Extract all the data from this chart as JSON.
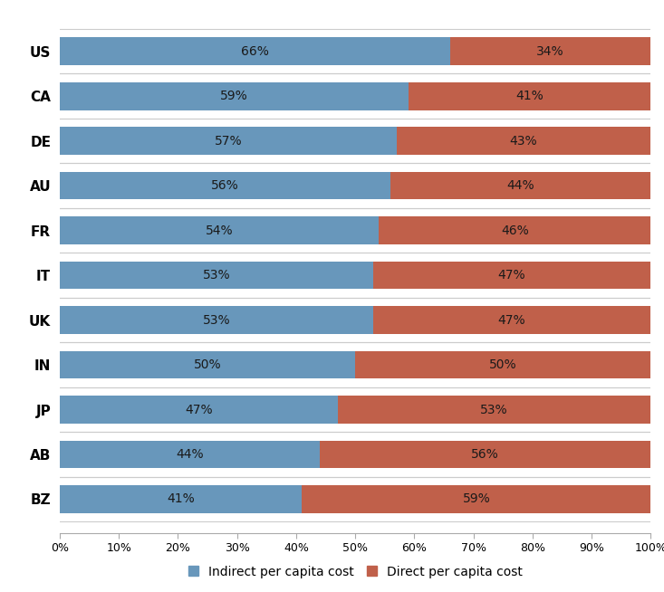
{
  "countries": [
    "US",
    "CA",
    "DE",
    "AU",
    "FR",
    "IT",
    "UK",
    "IN",
    "JP",
    "AB",
    "BZ"
  ],
  "indirect_pct": [
    66,
    59,
    57,
    56,
    54,
    53,
    53,
    50,
    47,
    44,
    41
  ],
  "direct_pct": [
    34,
    41,
    43,
    44,
    46,
    47,
    47,
    50,
    53,
    56,
    59
  ],
  "indirect_color": "#6897bb",
  "direct_color": "#c0604a",
  "bar_height": 0.62,
  "background_color": "#ffffff",
  "separator_color": "#cccccc",
  "legend_indirect": "Indirect per capita cost",
  "legend_direct": "Direct per capita cost",
  "xlim": [
    0,
    100
  ],
  "xtick_values": [
    0,
    10,
    20,
    30,
    40,
    50,
    60,
    70,
    80,
    90,
    100
  ],
  "xtick_labels": [
    "0%",
    "10%",
    "20%",
    "30%",
    "40%",
    "50%",
    "60%",
    "70%",
    "80%",
    "90%",
    "100%"
  ],
  "text_fontsize": 10,
  "legend_fontsize": 10,
  "tick_fontsize": 9,
  "country_fontsize": 11,
  "text_color": "#1a1a1a",
  "bar_edge_color": "none",
  "spine_color": "#aaaaaa"
}
